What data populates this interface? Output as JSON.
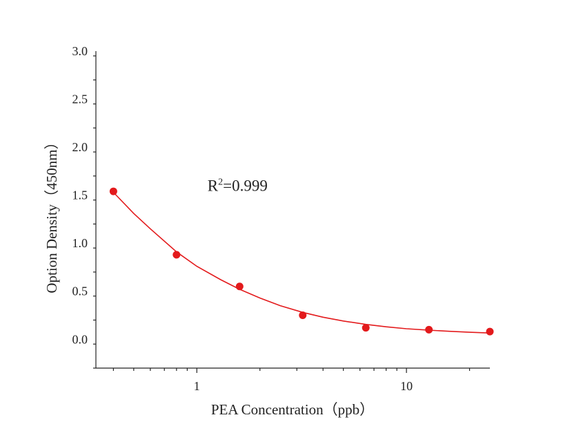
{
  "chart_data": {
    "type": "scatter",
    "xlabel": "PEA Concentration（ppb）",
    "ylabel": "Option Density（450nm）",
    "x_scale": "log",
    "xlim": [
      0.33,
      25
    ],
    "ylim": [
      -0.3,
      3.0
    ],
    "x_tick_values": [
      1,
      10
    ],
    "x_tick_labels": [
      "1",
      "10"
    ],
    "y_tick_values": [
      0.0,
      0.5,
      1.0,
      1.5,
      2.0,
      2.5,
      3.0
    ],
    "y_tick_labels": [
      "0.0",
      "0.5",
      "1.0",
      "1.5",
      "2.0",
      "2.5",
      "3.0"
    ],
    "grid": false,
    "series": [
      {
        "x": [
          0.4,
          0.8,
          1.6,
          3.2,
          6.4,
          12.8,
          25
        ],
        "y": [
          1.54,
          0.88,
          0.55,
          0.25,
          0.12,
          0.1,
          0.08
        ]
      }
    ],
    "fit_curve": {
      "x": [
        0.4,
        0.5,
        0.6,
        0.8,
        1.0,
        1.3,
        1.6,
        2.0,
        2.5,
        3.2,
        4.0,
        5.0,
        6.4,
        8.0,
        10.0,
        12.8,
        16.0,
        20.0,
        25.0
      ],
      "y": [
        1.53,
        1.31,
        1.15,
        0.91,
        0.76,
        0.62,
        0.52,
        0.43,
        0.35,
        0.28,
        0.23,
        0.19,
        0.155,
        0.13,
        0.11,
        0.095,
        0.083,
        0.073,
        0.065
      ]
    },
    "annotation": {
      "r_label": "R",
      "sup": "2",
      "value_label": "=0.999",
      "x": 3.2,
      "y": 1.6
    },
    "colors": {
      "series": "#e31a1c",
      "axis": "#222222"
    }
  }
}
